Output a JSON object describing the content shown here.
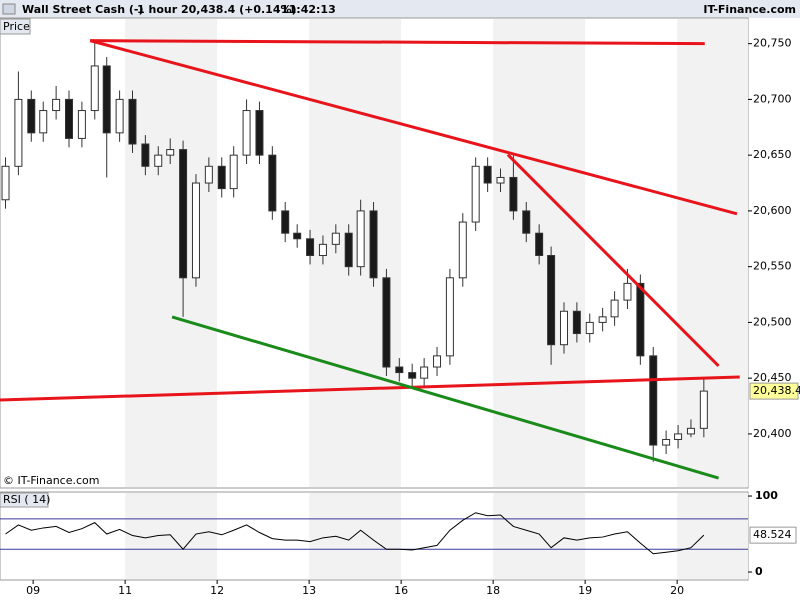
{
  "header": {
    "instrument": "Wall Street Cash (-)",
    "interval": "1 hour",
    "quote": "20,438.4 (+0.14%)",
    "time": "11:42:13",
    "brand": "IT-Finance.com"
  },
  "chart_data": [
    {
      "type": "candlestick",
      "panel_label": "Price",
      "watermark": "© IT-Finance.com",
      "x": [
        -0.3,
        -0.16,
        -0.02,
        0.11,
        0.25,
        0.39,
        0.53,
        0.67,
        0.8,
        0.94,
        1.08,
        1.22,
        1.36,
        1.49,
        1.63,
        1.77,
        1.91,
        2.05,
        2.18,
        2.32,
        2.46,
        2.6,
        2.74,
        2.87,
        3.01,
        3.15,
        3.29,
        3.43,
        3.56,
        3.7,
        3.84,
        3.98,
        4.12,
        4.25,
        4.39,
        4.53,
        4.67,
        4.81,
        4.94,
        5.08,
        5.22,
        5.36,
        5.5,
        5.63,
        5.77,
        5.91,
        6.05,
        6.19,
        6.32,
        6.46,
        6.6,
        6.74,
        6.88,
        7.01,
        7.15,
        7.29
      ],
      "open": [
        20610,
        20640,
        20700,
        20670,
        20690,
        20700,
        20665,
        20690,
        20730,
        20670,
        20700,
        20660,
        20640,
        20650,
        20655,
        20540,
        20625,
        20640,
        20620,
        20650,
        20690,
        20650,
        20600,
        20580,
        20575,
        20560,
        20570,
        20580,
        20550,
        20600,
        20540,
        20460,
        20455,
        20450,
        20460,
        20470,
        20540,
        20590,
        20640,
        20625,
        20630,
        20600,
        20580,
        20560,
        20480,
        20510,
        20490,
        20500,
        20505,
        20520,
        20535,
        20470,
        20390,
        20395,
        20400,
        20405
      ],
      "high": [
        20648,
        20725,
        20708,
        20698,
        20712,
        20708,
        20698,
        20752,
        20738,
        20708,
        20708,
        20668,
        20658,
        20665,
        20663,
        20633,
        20648,
        20648,
        20658,
        20700,
        20698,
        20658,
        20608,
        20588,
        20583,
        20578,
        20588,
        20588,
        20610,
        20608,
        20548,
        20468,
        20463,
        20468,
        20478,
        20548,
        20598,
        20648,
        20648,
        20638,
        20650,
        20608,
        20588,
        20568,
        20518,
        20518,
        20508,
        20513,
        20528,
        20548,
        20543,
        20478,
        20403,
        20408,
        20413,
        20450
      ],
      "low": [
        20602,
        20632,
        20662,
        20662,
        20682,
        20657,
        20657,
        20682,
        20630,
        20662,
        20652,
        20632,
        20632,
        20642,
        20505,
        20532,
        20617,
        20612,
        20612,
        20642,
        20642,
        20592,
        20572,
        20567,
        20552,
        20552,
        20562,
        20542,
        20542,
        20532,
        20452,
        20447,
        20442,
        20442,
        20452,
        20462,
        20532,
        20582,
        20617,
        20617,
        20592,
        20572,
        20552,
        20462,
        20472,
        20482,
        20482,
        20492,
        20497,
        20512,
        20462,
        20375,
        20382,
        20387,
        20397,
        20397
      ],
      "close": [
        20640,
        20700,
        20670,
        20690,
        20700,
        20665,
        20690,
        20730,
        20670,
        20700,
        20660,
        20640,
        20650,
        20655,
        20540,
        20625,
        20640,
        20620,
        20650,
        20690,
        20650,
        20600,
        20580,
        20575,
        20560,
        20570,
        20580,
        20550,
        20600,
        20540,
        20460,
        20455,
        20450,
        20460,
        20470,
        20540,
        20590,
        20640,
        20625,
        20630,
        20600,
        20580,
        20560,
        20480,
        20510,
        20490,
        20500,
        20505,
        20520,
        20535,
        20470,
        20390,
        20395,
        20400,
        20405,
        20438.4
      ],
      "up_color": "#ffffff",
      "down_color": "#1a1a1a",
      "last_price": {
        "value": 20438.4,
        "label": "20,438.4"
      },
      "xlim": [
        -0.36,
        7.77
      ],
      "ylim": [
        20351.5,
        20773
      ],
      "yticks": [
        {
          "value": 20400,
          "label": "20,400"
        },
        {
          "value": 20450,
          "label": "20,450"
        },
        {
          "value": 20500,
          "label": "20,500"
        },
        {
          "value": 20550,
          "label": "20,550"
        },
        {
          "value": 20600,
          "label": "20,600"
        },
        {
          "value": 20650,
          "label": "20,650"
        },
        {
          "value": 20700,
          "label": "20,700"
        },
        {
          "value": 20750,
          "label": "20,750"
        }
      ],
      "lines": [
        {
          "color": "#e8141b",
          "points": [
            [
              0.62,
              20752.7
            ],
            [
              7.3,
              20750
            ]
          ]
        },
        {
          "color": "#e8141b",
          "points": [
            [
              0.62,
              20752.7
            ],
            [
              7.65,
              20597.4
            ]
          ]
        },
        {
          "color": "#e8141b",
          "points": [
            [
              5.16,
              20650.4
            ],
            [
              7.45,
              20461
            ]
          ]
        },
        {
          "color": "#e8141b",
          "points": [
            [
              -0.36,
              20430.4
            ],
            [
              7.68,
              20451
            ]
          ]
        },
        {
          "color": "#1a8a1a",
          "points": [
            [
              1.51,
              20504.9
            ],
            [
              7.45,
              20360.4
            ]
          ]
        }
      ]
    },
    {
      "type": "line",
      "panel_label": "RSI ( 14)",
      "color": "#000000",
      "values": [
        50,
        62,
        55,
        58,
        60,
        52,
        57,
        65,
        50,
        56,
        48,
        45,
        48,
        49,
        30,
        50,
        53,
        49,
        55,
        62,
        52,
        44,
        42,
        42,
        40,
        45,
        47,
        42,
        55,
        42,
        30,
        30,
        29,
        32,
        35,
        55,
        68,
        78,
        74,
        75,
        60,
        55,
        50,
        32,
        45,
        42,
        45,
        46,
        50,
        53,
        38,
        24,
        26,
        28,
        32,
        48.524
      ],
      "ylim": [
        -10.5,
        105.3
      ],
      "yticks": [
        0,
        100
      ],
      "bands": [
        30,
        70
      ],
      "xlim": [
        -0.36,
        7.77
      ],
      "xticks": [
        {
          "value": 0,
          "label": "09"
        },
        {
          "value": 1,
          "label": "11"
        },
        {
          "value": 2,
          "label": "12"
        },
        {
          "value": 3,
          "label": "13"
        },
        {
          "value": 4,
          "label": "16"
        },
        {
          "value": 5,
          "label": "18"
        },
        {
          "value": 6,
          "label": "19"
        },
        {
          "value": 7,
          "label": "20"
        }
      ]
    }
  ]
}
